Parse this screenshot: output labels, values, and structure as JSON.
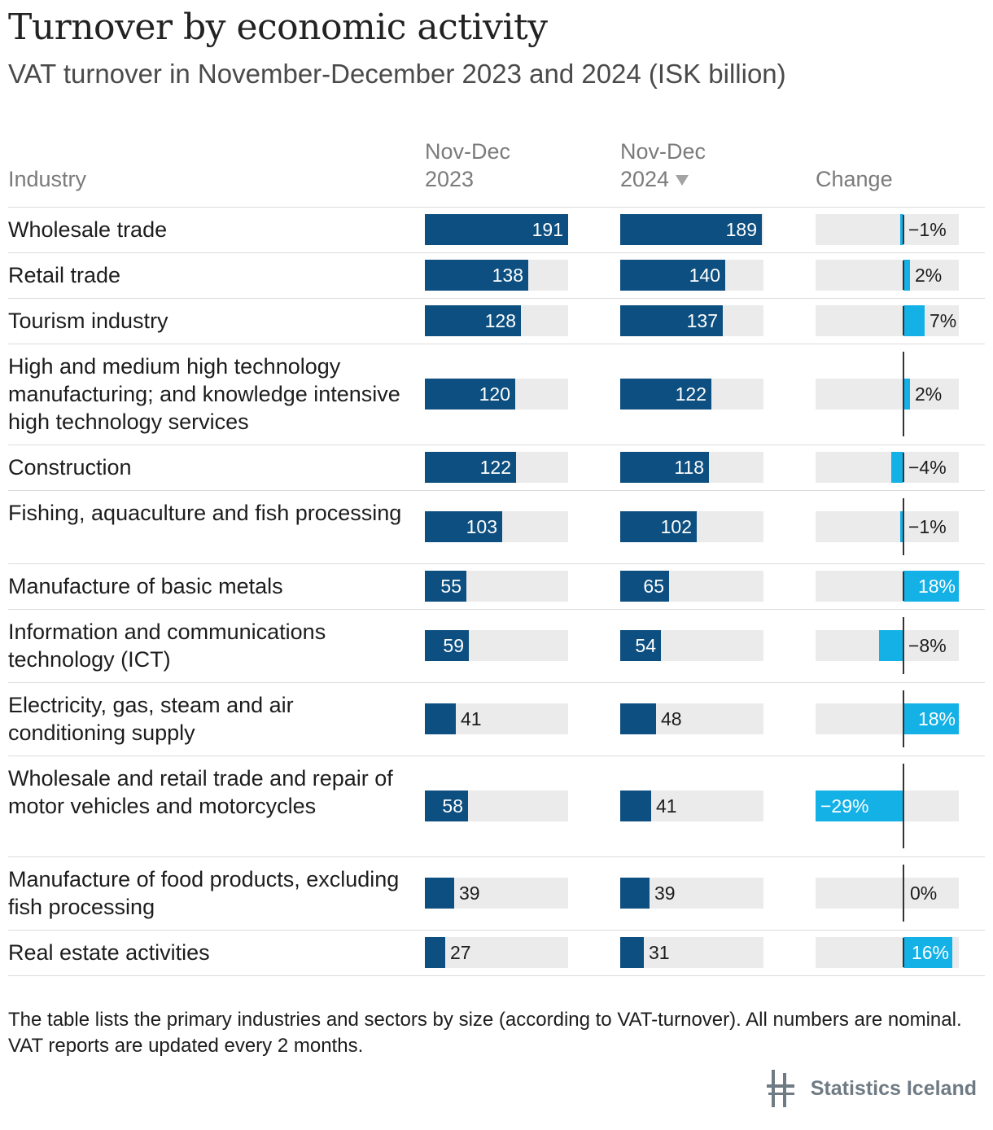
{
  "header": {
    "title": "Turnover by economic activity",
    "subtitle": "VAT turnover in November-December 2023 and 2024 (ISK billion)"
  },
  "columns": {
    "industry": "Industry",
    "y2023_line1": "Nov-Dec",
    "y2023_line2": "2023",
    "y2024_line1": "Nov-Dec",
    "y2024_line2": "2024",
    "change": "Change",
    "sort_icon": "sort-descending-icon"
  },
  "colors": {
    "value_bar": "#0d4f80",
    "change_bar": "#14b1e7",
    "track": "#ebebeb"
  },
  "chart_data": {
    "type": "table",
    "max_value": 191,
    "change_range": [
      -29,
      18
    ],
    "rows": [
      {
        "label": "Wholesale trade",
        "v2023": 191,
        "v2024": 189,
        "change": -1,
        "change_label": "−1%"
      },
      {
        "label": "Retail trade",
        "v2023": 138,
        "v2024": 140,
        "change": 2,
        "change_label": "2%"
      },
      {
        "label": "Tourism industry",
        "v2023": 128,
        "v2024": 137,
        "change": 7,
        "change_label": "7%"
      },
      {
        "label": "High and medium high technology manufacturing; and knowledge intensive high technology services",
        "v2023": 120,
        "v2024": 122,
        "change": 2,
        "change_label": "2%"
      },
      {
        "label": "Construction",
        "v2023": 122,
        "v2024": 118,
        "change": -4,
        "change_label": "−4%"
      },
      {
        "label": "Fishing, aquaculture and fish processing",
        "v2023": 103,
        "v2024": 102,
        "change": -1,
        "change_label": "−1%"
      },
      {
        "label": "Manufacture of basic metals",
        "v2023": 55,
        "v2024": 65,
        "change": 18,
        "change_label": "18%"
      },
      {
        "label": "Information and communications technology (ICT)",
        "v2023": 59,
        "v2024": 54,
        "change": -8,
        "change_label": "−8%"
      },
      {
        "label": "Electricity, gas, steam and air conditioning supply",
        "v2023": 41,
        "v2024": 48,
        "change": 18,
        "change_label": "18%"
      },
      {
        "label": "Wholesale and retail trade and repair of motor vehicles and motorcycles",
        "v2023": 58,
        "v2024": 41,
        "change": -29,
        "change_label": "−29%"
      },
      {
        "label": "Manufacture of food products, excluding fish processing",
        "v2023": 39,
        "v2024": 39,
        "change": 0,
        "change_label": "0%"
      },
      {
        "label": "Real estate activities",
        "v2023": 27,
        "v2024": 31,
        "change": 16,
        "change_label": "16%"
      }
    ]
  },
  "footer": {
    "note": "The table lists the primary industries and sectors by size (according to VAT-turnover). All numbers are nominal. VAT reports are updated every 2 months.",
    "brand": "Statistics Iceland",
    "logo_icon": "statistics-iceland-logo-icon"
  }
}
